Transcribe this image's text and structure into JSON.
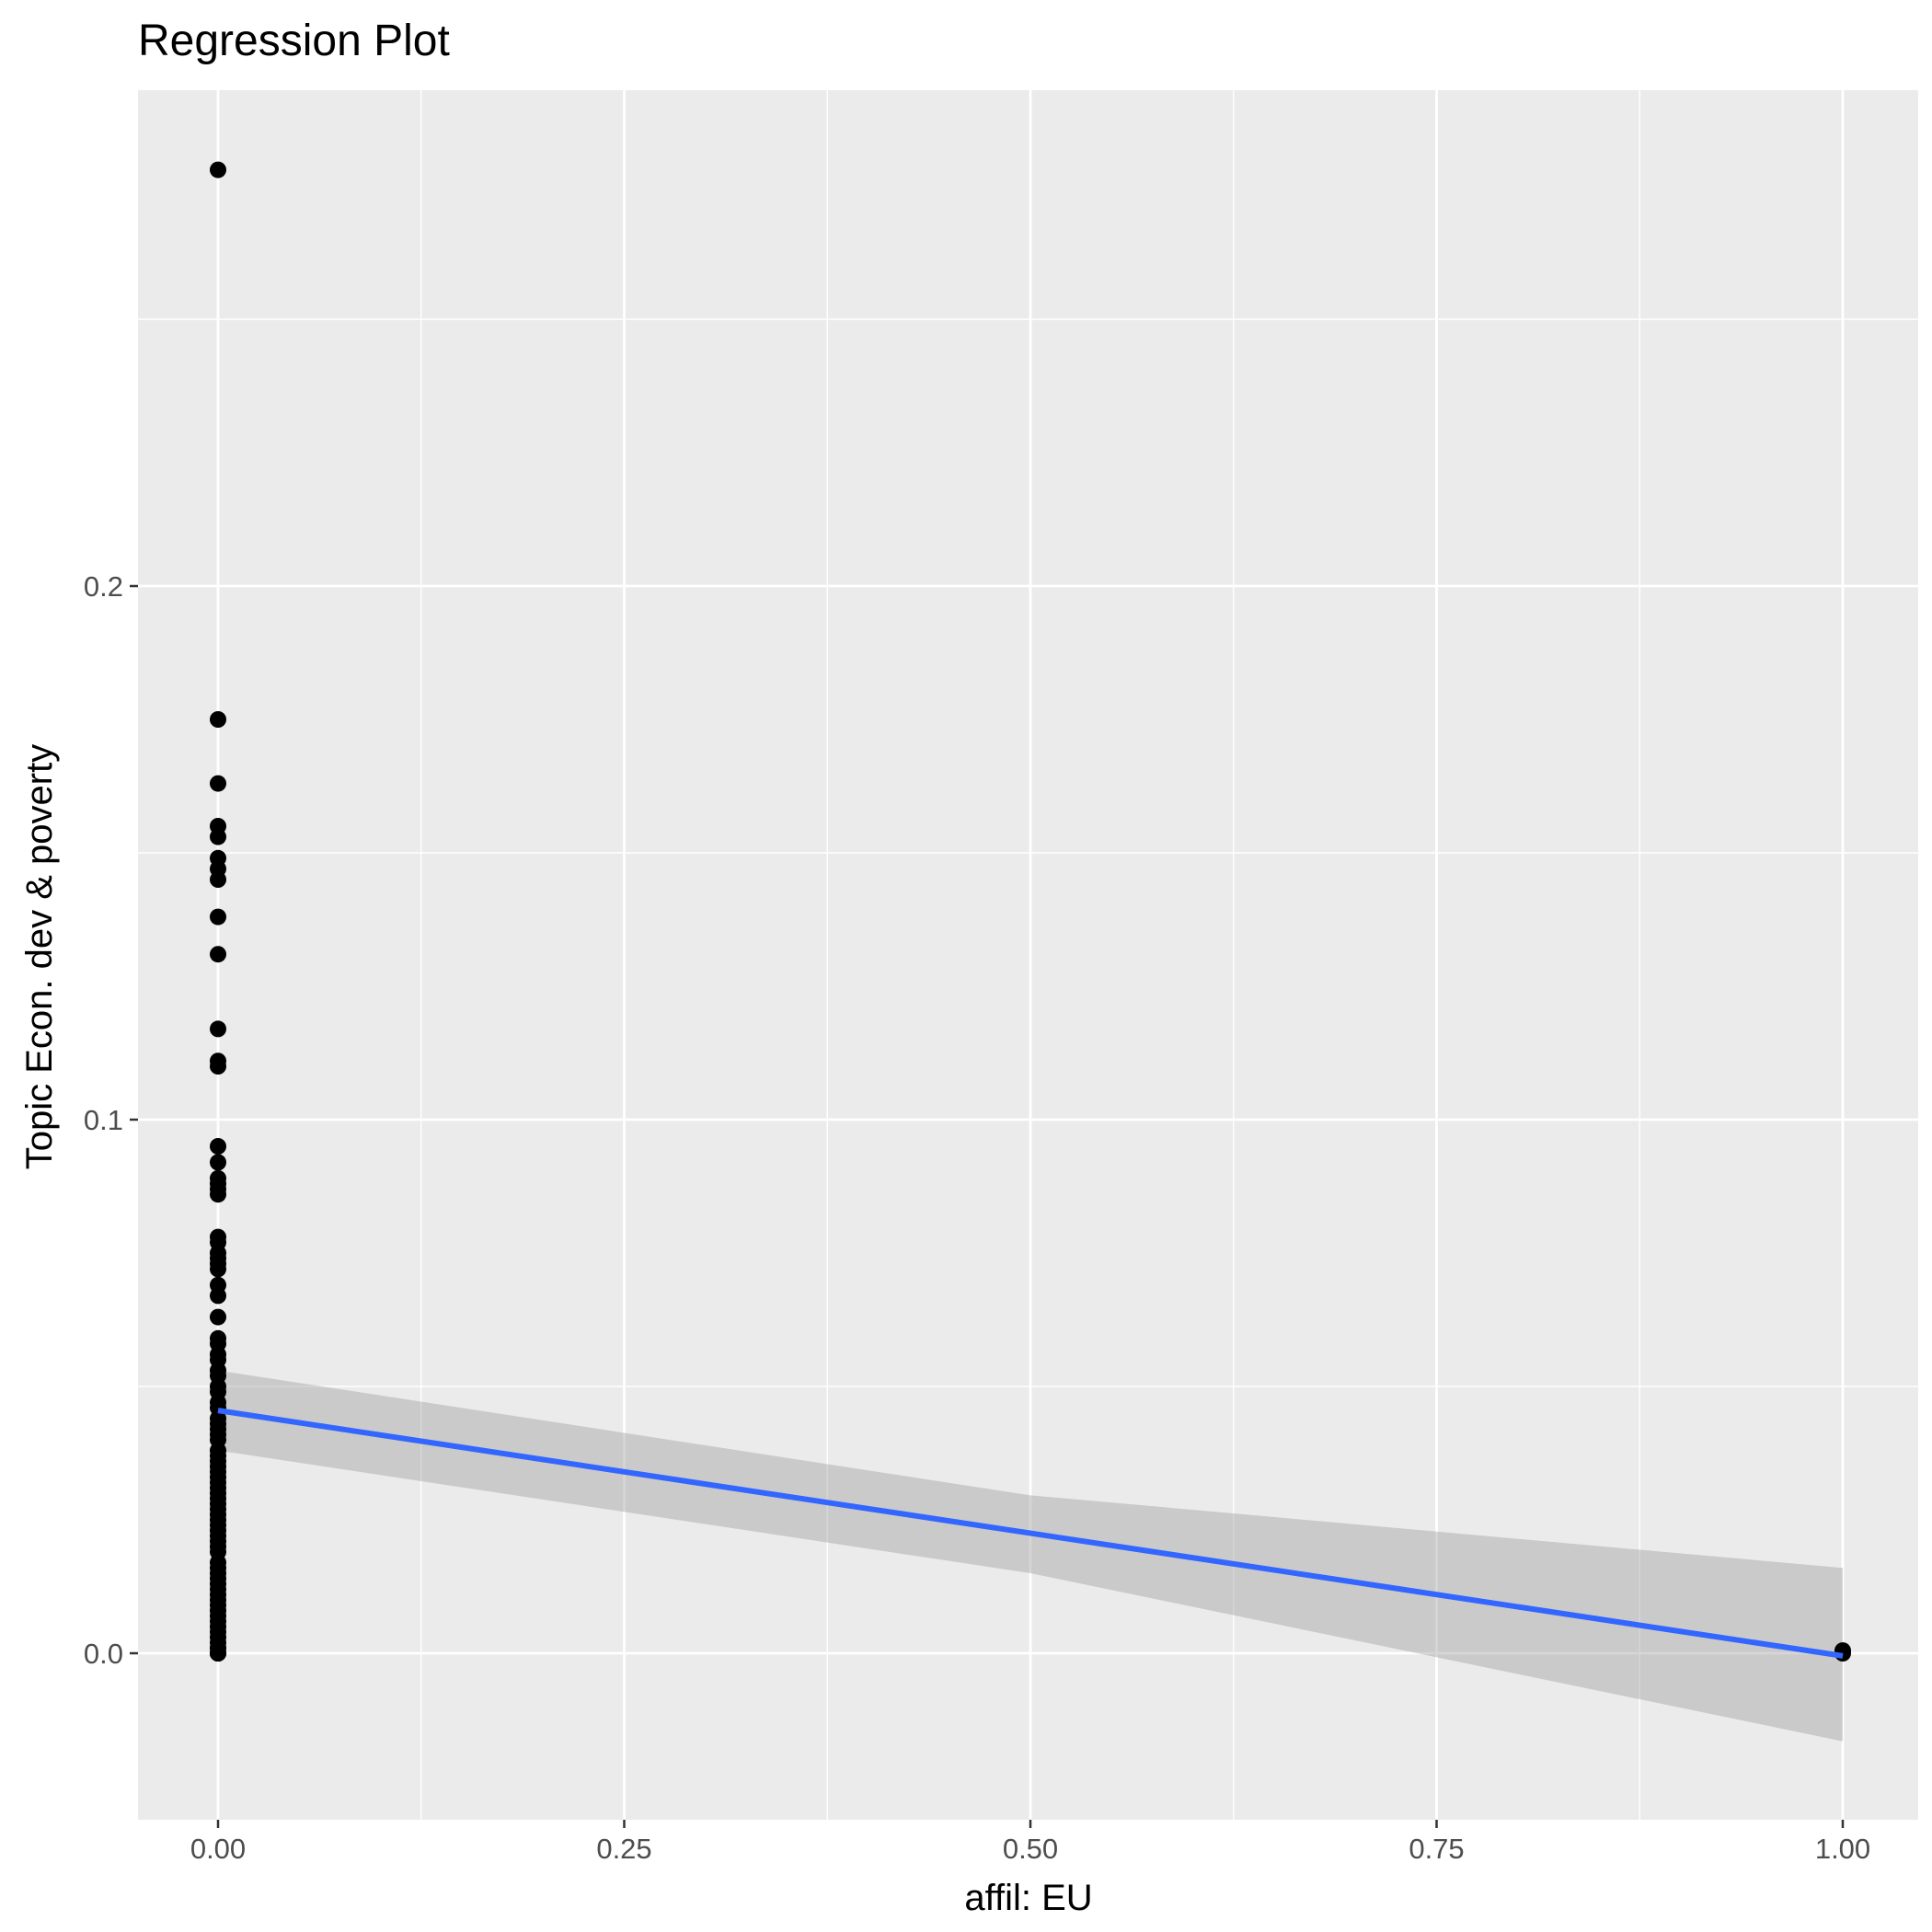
{
  "chart_data": {
    "type": "scatter",
    "title": "Regression Plot",
    "xlabel": "affil: EU",
    "ylabel": "Topic Econ. dev & poverty",
    "xlim": [
      -0.05,
      1.05
    ],
    "ylim": [
      -0.0296,
      0.293
    ],
    "x_ticks": [
      0.0,
      0.25,
      0.5,
      0.75,
      1.0
    ],
    "x_tick_labels": [
      "0.00",
      "0.25",
      "0.50",
      "0.75",
      "1.00"
    ],
    "x_minor_ticks": [
      0.125,
      0.375,
      0.625,
      0.875
    ],
    "y_ticks": [
      0.0,
      0.1,
      0.2
    ],
    "y_tick_labels": [
      "0.0",
      "0.1",
      "0.2"
    ],
    "y_minor_ticks": [
      0.05,
      0.15,
      0.25
    ],
    "grid": true,
    "colors": {
      "panel": "#ebebeb",
      "grid": "#ffffff",
      "points": "#000000",
      "fit_line": "#3366ff",
      "confidence_band": "#999999"
    },
    "points": {
      "x": [
        0,
        0,
        0,
        0,
        0,
        0,
        0,
        0,
        0,
        0,
        0,
        0,
        0,
        0,
        0,
        0,
        0,
        0,
        0,
        0,
        0,
        0,
        0,
        0,
        0,
        0,
        0,
        0,
        0,
        0,
        0,
        0,
        0,
        0,
        0,
        0,
        0,
        0,
        0,
        0,
        0,
        0,
        0,
        0,
        0,
        0,
        0,
        0,
        0,
        0,
        0,
        0,
        0,
        0,
        0,
        0,
        0,
        0,
        0,
        0,
        0,
        0,
        0,
        0,
        0,
        0,
        0,
        0,
        0,
        0,
        0,
        0,
        0,
        0,
        0,
        0,
        0,
        0,
        0,
        0,
        0,
        0,
        0,
        0,
        0,
        0,
        1,
        1
      ],
      "y": [
        0.278,
        0.175,
        0.163,
        0.155,
        0.153,
        0.149,
        0.147,
        0.145,
        0.138,
        0.131,
        0.117,
        0.111,
        0.11,
        0.095,
        0.092,
        0.089,
        0.088,
        0.087,
        0.086,
        0.078,
        0.077,
        0.075,
        0.074,
        0.073,
        0.072,
        0.069,
        0.067,
        0.063,
        0.059,
        0.058,
        0.056,
        0.055,
        0.053,
        0.052,
        0.05,
        0.049,
        0.047,
        0.046,
        0.044,
        0.043,
        0.042,
        0.041,
        0.04,
        0.038,
        0.037,
        0.036,
        0.035,
        0.034,
        0.033,
        0.032,
        0.031,
        0.03,
        0.029,
        0.028,
        0.027,
        0.026,
        0.025,
        0.024,
        0.023,
        0.022,
        0.021,
        0.02,
        0.019,
        0.017,
        0.016,
        0.015,
        0.014,
        0.013,
        0.012,
        0.011,
        0.01,
        0.009,
        0.008,
        0.007,
        0.006,
        0.005,
        0.004,
        0.003,
        0.002,
        0.001,
        0.001,
        0.0,
        0.0,
        0.0,
        0.0,
        0.0,
        0.0,
        0.0005
      ]
    },
    "fit": {
      "x": [
        0,
        1
      ],
      "y": [
        0.0455,
        -0.0005
      ]
    },
    "confidence_band": {
      "x": [
        0,
        0.5,
        1
      ],
      "upper": [
        0.053,
        0.0296,
        0.016
      ],
      "lower": [
        0.038,
        0.015,
        -0.0165
      ]
    }
  }
}
